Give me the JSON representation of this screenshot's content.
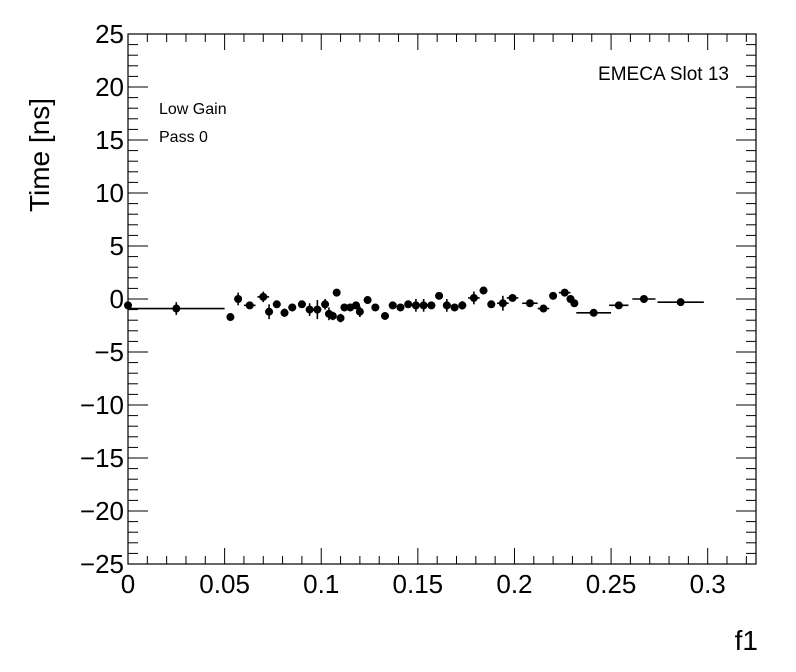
{
  "chart_data": {
    "type": "scatter",
    "xlabel": "f1",
    "ylabel": "Time [ns]",
    "xlim": [
      0,
      0.325
    ],
    "ylim": [
      -25,
      25
    ],
    "x_ticks": [
      "0",
      "0.05",
      "0.1",
      "0.15",
      "0.2",
      "0.25",
      "0.3"
    ],
    "y_ticks": [
      "25",
      "20",
      "15",
      "10",
      "5",
      "0",
      "−5",
      "−10",
      "−15",
      "−20",
      "−25"
    ],
    "annotations": {
      "slot": "EMECA Slot 13",
      "gain": "Low Gain",
      "pass": "Pass 0"
    },
    "grid": false,
    "marker_color": "#000000",
    "points": [
      {
        "x": 0.0,
        "y": -0.6,
        "xerr": 0.0,
        "yerr": 0.3
      },
      {
        "x": 0.025,
        "y": -0.9,
        "xerr": 0.025,
        "yerr": 0.6
      },
      {
        "x": 0.053,
        "y": -1.7,
        "xerr": 0.002,
        "yerr": 0.3
      },
      {
        "x": 0.057,
        "y": 0.0,
        "xerr": 0.002,
        "yerr": 0.6
      },
      {
        "x": 0.063,
        "y": -0.6,
        "xerr": 0.003,
        "yerr": 0.3
      },
      {
        "x": 0.07,
        "y": 0.2,
        "xerr": 0.003,
        "yerr": 0.5
      },
      {
        "x": 0.073,
        "y": -1.2,
        "xerr": 0.002,
        "yerr": 0.7
      },
      {
        "x": 0.077,
        "y": -0.5,
        "xerr": 0.002,
        "yerr": 0.3
      },
      {
        "x": 0.081,
        "y": -1.3,
        "xerr": 0.002,
        "yerr": 0.4
      },
      {
        "x": 0.085,
        "y": -0.8,
        "xerr": 0.002,
        "yerr": 0.3
      },
      {
        "x": 0.09,
        "y": -0.5,
        "xerr": 0.002,
        "yerr": 0.3
      },
      {
        "x": 0.094,
        "y": -1.0,
        "xerr": 0.002,
        "yerr": 0.6
      },
      {
        "x": 0.098,
        "y": -1.0,
        "xerr": 0.002,
        "yerr": 0.9
      },
      {
        "x": 0.102,
        "y": -0.5,
        "xerr": 0.002,
        "yerr": 0.5
      },
      {
        "x": 0.104,
        "y": -1.4,
        "xerr": 0.001,
        "yerr": 0.6
      },
      {
        "x": 0.106,
        "y": -1.6,
        "xerr": 0.001,
        "yerr": 0.4
      },
      {
        "x": 0.108,
        "y": 0.6,
        "xerr": 0.001,
        "yerr": 0.3
      },
      {
        "x": 0.11,
        "y": -1.8,
        "xerr": 0.001,
        "yerr": 0.4
      },
      {
        "x": 0.112,
        "y": -0.8,
        "xerr": 0.001,
        "yerr": 0.3
      },
      {
        "x": 0.115,
        "y": -0.8,
        "xerr": 0.002,
        "yerr": 0.3
      },
      {
        "x": 0.118,
        "y": -0.6,
        "xerr": 0.002,
        "yerr": 0.3
      },
      {
        "x": 0.12,
        "y": -1.2,
        "xerr": 0.001,
        "yerr": 0.5
      },
      {
        "x": 0.124,
        "y": -0.1,
        "xerr": 0.002,
        "yerr": 0.3
      },
      {
        "x": 0.128,
        "y": -0.8,
        "xerr": 0.002,
        "yerr": 0.3
      },
      {
        "x": 0.133,
        "y": -1.6,
        "xerr": 0.002,
        "yerr": 0.3
      },
      {
        "x": 0.137,
        "y": -0.6,
        "xerr": 0.002,
        "yerr": 0.3
      },
      {
        "x": 0.141,
        "y": -0.8,
        "xerr": 0.002,
        "yerr": 0.3
      },
      {
        "x": 0.145,
        "y": -0.5,
        "xerr": 0.002,
        "yerr": 0.3
      },
      {
        "x": 0.149,
        "y": -0.6,
        "xerr": 0.002,
        "yerr": 0.6
      },
      {
        "x": 0.153,
        "y": -0.6,
        "xerr": 0.002,
        "yerr": 0.6
      },
      {
        "x": 0.157,
        "y": -0.6,
        "xerr": 0.002,
        "yerr": 0.3
      },
      {
        "x": 0.161,
        "y": 0.3,
        "xerr": 0.002,
        "yerr": 0.3
      },
      {
        "x": 0.165,
        "y": -0.6,
        "xerr": 0.002,
        "yerr": 0.6
      },
      {
        "x": 0.169,
        "y": -0.8,
        "xerr": 0.002,
        "yerr": 0.3
      },
      {
        "x": 0.173,
        "y": -0.6,
        "xerr": 0.002,
        "yerr": 0.4
      },
      {
        "x": 0.179,
        "y": 0.1,
        "xerr": 0.003,
        "yerr": 0.6
      },
      {
        "x": 0.184,
        "y": 0.8,
        "xerr": 0.002,
        "yerr": 0.3
      },
      {
        "x": 0.188,
        "y": -0.5,
        "xerr": 0.002,
        "yerr": 0.3
      },
      {
        "x": 0.194,
        "y": -0.4,
        "xerr": 0.003,
        "yerr": 0.7
      },
      {
        "x": 0.199,
        "y": 0.1,
        "xerr": 0.003,
        "yerr": 0.3
      },
      {
        "x": 0.208,
        "y": -0.4,
        "xerr": 0.004,
        "yerr": 0.3
      },
      {
        "x": 0.215,
        "y": -0.9,
        "xerr": 0.003,
        "yerr": 0.3
      },
      {
        "x": 0.22,
        "y": 0.3,
        "xerr": 0.002,
        "yerr": 0.3
      },
      {
        "x": 0.226,
        "y": 0.6,
        "xerr": 0.003,
        "yerr": 0.3
      },
      {
        "x": 0.229,
        "y": 0.0,
        "xerr": 0.002,
        "yerr": 0.3
      },
      {
        "x": 0.231,
        "y": -0.4,
        "xerr": 0.001,
        "yerr": 0.3
      },
      {
        "x": 0.241,
        "y": -1.3,
        "xerr": 0.009,
        "yerr": 0.3
      },
      {
        "x": 0.254,
        "y": -0.6,
        "xerr": 0.005,
        "yerr": 0.3
      },
      {
        "x": 0.267,
        "y": 0.0,
        "xerr": 0.006,
        "yerr": 0.3
      },
      {
        "x": 0.286,
        "y": -0.3,
        "xerr": 0.012,
        "yerr": 0.3
      }
    ]
  }
}
